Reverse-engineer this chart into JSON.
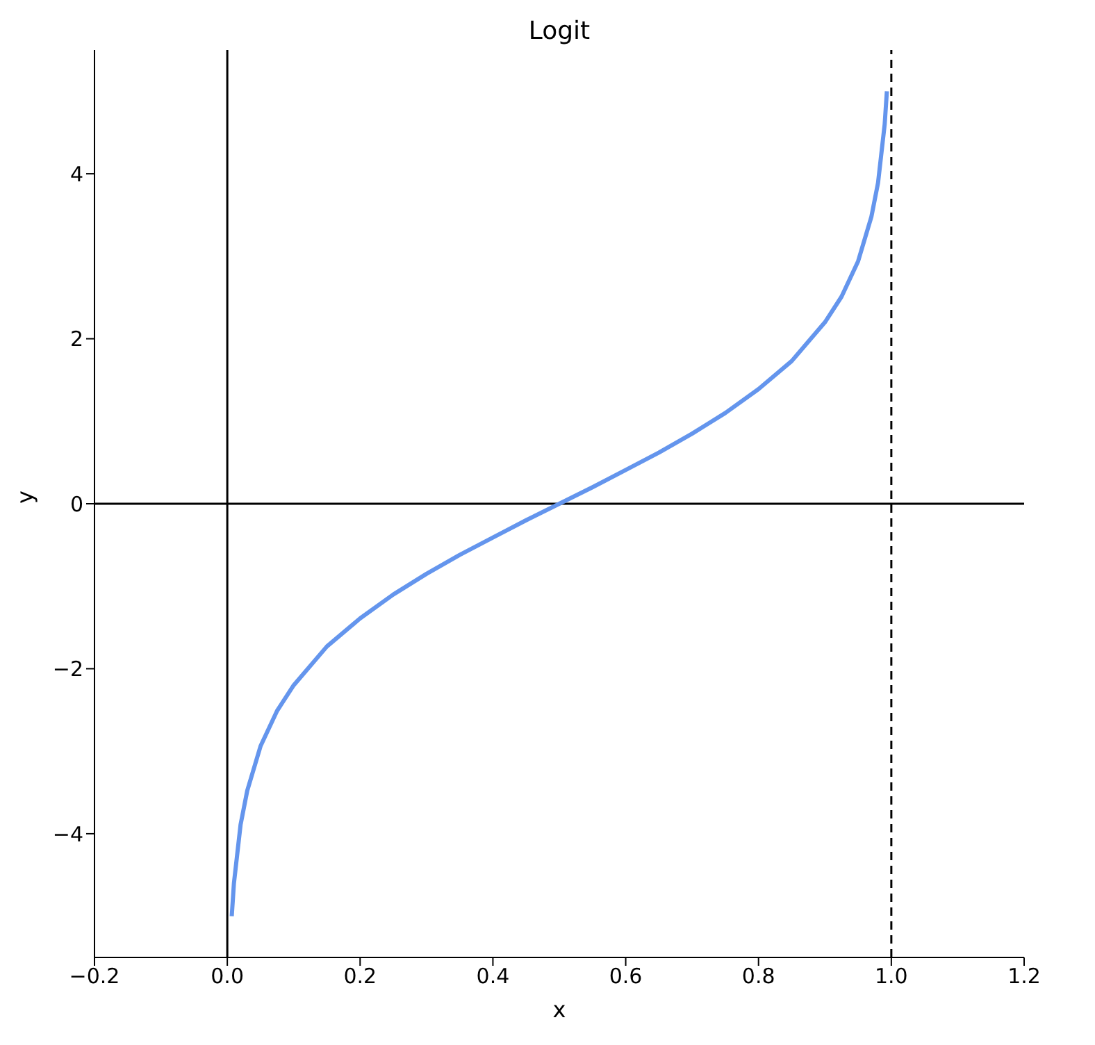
{
  "chart_data": {
    "type": "line",
    "title": "Logit",
    "xlabel": "x",
    "ylabel": "y",
    "x": [
      0.0067,
      0.01,
      0.02,
      0.03,
      0.05,
      0.075,
      0.1,
      0.15,
      0.2,
      0.25,
      0.3,
      0.35,
      0.4,
      0.45,
      0.5,
      0.55,
      0.6,
      0.65,
      0.7,
      0.75,
      0.8,
      0.85,
      0.9,
      0.925,
      0.95,
      0.97,
      0.98,
      0.99,
      0.9933
    ],
    "series": [
      {
        "color": "#6495ed",
        "values": [
          -5,
          -4.6,
          -3.89,
          -3.48,
          -2.94,
          -2.51,
          -2.2,
          -1.73,
          -1.39,
          -1.1,
          -0.85,
          -0.62,
          -0.41,
          -0.2,
          0,
          0.2,
          0.41,
          0.62,
          0.85,
          1.1,
          1.39,
          1.73,
          2.2,
          2.51,
          2.94,
          3.48,
          3.89,
          4.6,
          5
        ]
      }
    ],
    "xlim": [
      -0.2,
      1.2
    ],
    "ylim": [
      -5.5,
      5.5
    ],
    "xticks": [
      {
        "value": -0.2,
        "label": "−0.2"
      },
      {
        "value": 0,
        "label": "0.0"
      },
      {
        "value": 0.2,
        "label": "0.2"
      },
      {
        "value": 0.4,
        "label": "0.4"
      },
      {
        "value": 0.6,
        "label": "0.6"
      },
      {
        "value": 0.8,
        "label": "0.8"
      },
      {
        "value": 1,
        "label": "1.0"
      },
      {
        "value": 1.2,
        "label": "1.2"
      }
    ],
    "yticks": [
      {
        "value": -4,
        "label": "−4"
      },
      {
        "value": -2,
        "label": "−2"
      },
      0,
      2,
      4
    ],
    "ref_lines": [
      {
        "axis": "y",
        "value": 0,
        "color": "#000000",
        "line_style": "solid"
      },
      {
        "axis": "x",
        "value": 0,
        "color": "#000000",
        "line_style": "solid"
      },
      {
        "axis": "x",
        "value": 1,
        "color": "#000000",
        "line_style": "dashed"
      }
    ],
    "grid": false,
    "legend": false,
    "marker": "none",
    "line_style": "solid"
  }
}
